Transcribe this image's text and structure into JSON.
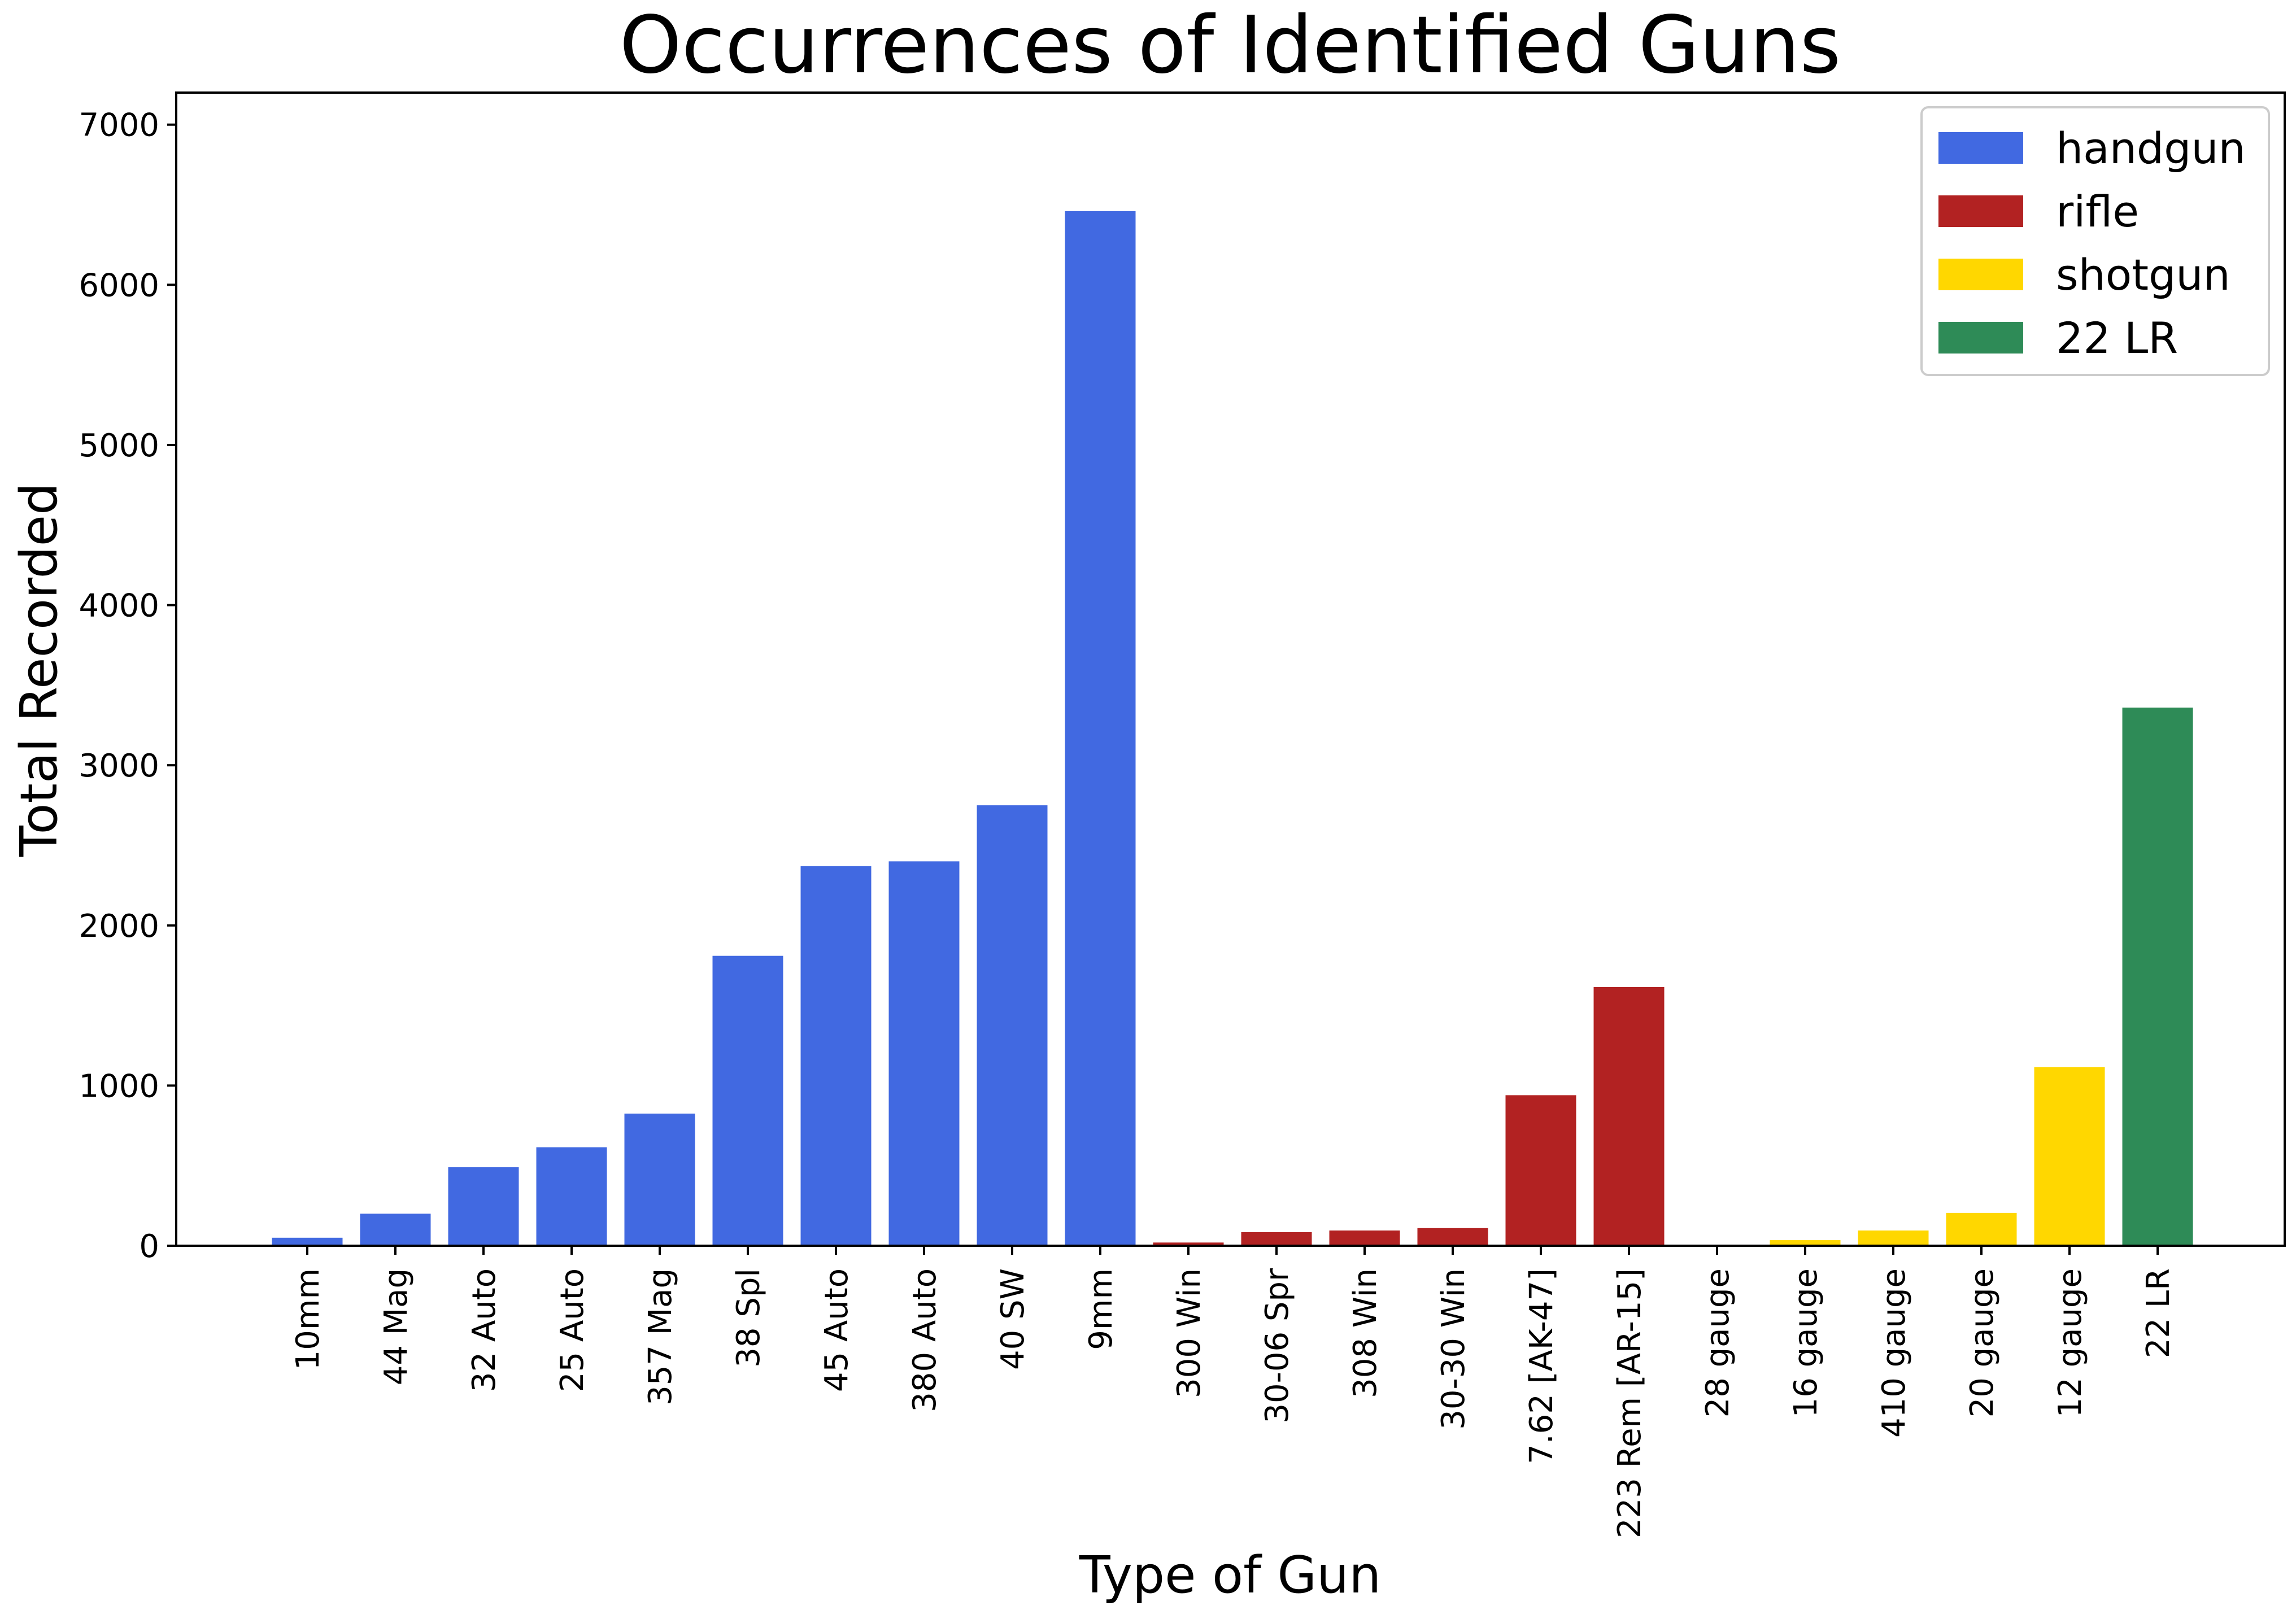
{
  "chart_data": {
    "type": "bar",
    "title": "Occurrences of Identified Guns",
    "xlabel": "Type of Gun",
    "ylabel": "Total Recorded",
    "ylim": [
      0,
      7200
    ],
    "yticks": [
      "0",
      "1000",
      "2000",
      "3000",
      "4000",
      "5000",
      "6000",
      "7000"
    ],
    "grid": false,
    "legend_position": "top-right",
    "categories": [
      "10mm",
      "44 Mag",
      "32 Auto",
      "25 Auto",
      "357 Mag",
      "38 Spl",
      "45 Auto",
      "380 Auto",
      "40 SW",
      "9mm",
      "300 Win",
      "30-06 Spr",
      "308 Win",
      "30-30 Win",
      "7.62 [AK-47]",
      "223 Rem [AR-15]",
      "28 gauge",
      "16 gauge",
      "410 gauge",
      "20 gauge",
      "12 gauge",
      "22 LR"
    ],
    "values": [
      50,
      200,
      490,
      615,
      825,
      1810,
      2370,
      2400,
      2750,
      6460,
      20,
      85,
      95,
      110,
      940,
      1615,
      5,
      35,
      95,
      205,
      1115,
      3360
    ],
    "groups": [
      "handgun",
      "handgun",
      "handgun",
      "handgun",
      "handgun",
      "handgun",
      "handgun",
      "handgun",
      "handgun",
      "handgun",
      "rifle",
      "rifle",
      "rifle",
      "rifle",
      "rifle",
      "rifle",
      "shotgun",
      "shotgun",
      "shotgun",
      "shotgun",
      "shotgun",
      "22 LR"
    ],
    "legend": [
      {
        "name": "handgun",
        "color": "#4169e1"
      },
      {
        "name": "rifle",
        "color": "#b22222"
      },
      {
        "name": "shotgun",
        "color": "#ffd700"
      },
      {
        "name": "22 LR",
        "color": "#2e8b57"
      }
    ]
  }
}
